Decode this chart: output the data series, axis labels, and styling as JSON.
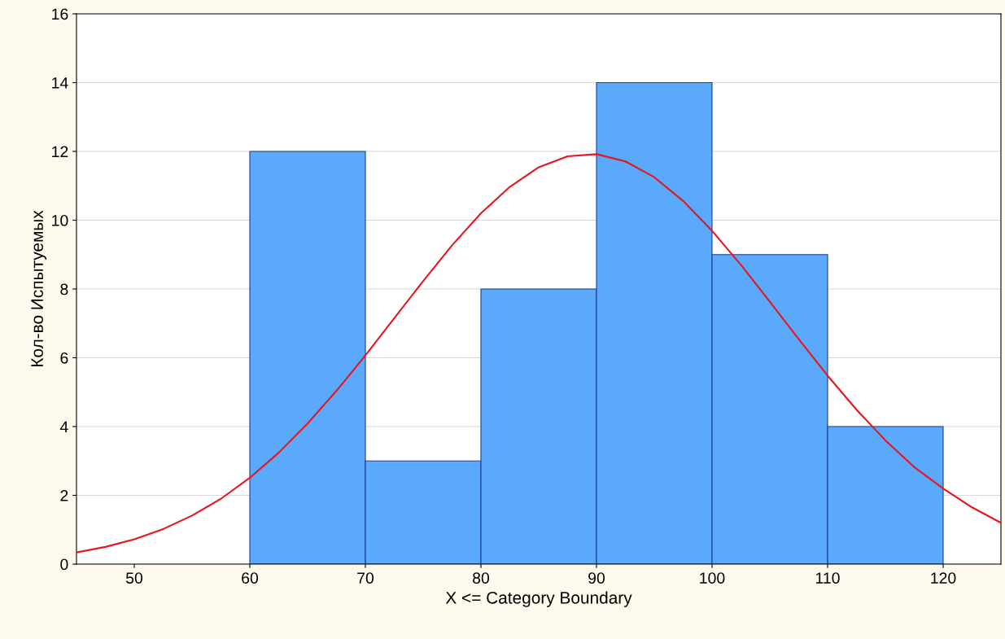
{
  "chart_data": {
    "type": "histogram",
    "xlabel": "X <= Category Boundary",
    "ylabel": "Кол-во Испытуемых",
    "series": [
      {
        "bins": [
          60,
          70,
          80,
          90,
          100,
          110,
          120
        ],
        "values": [
          12,
          3,
          8,
          14,
          9,
          4
        ],
        "color": "#5aa9fa"
      },
      {
        "type": "line",
        "color": "#e8141e",
        "x": [
          45,
          47.5,
          50,
          52.5,
          55,
          57.5,
          60,
          62.5,
          65,
          67.5,
          70,
          72.5,
          75,
          77.5,
          80,
          82.5,
          85,
          87.5,
          90,
          92.5,
          95,
          97.5,
          100,
          102.5,
          105,
          107.5,
          110,
          112.5,
          115,
          117.5,
          120,
          122.5,
          125
        ],
        "values": [
          0.34,
          0.5,
          0.72,
          1.02,
          1.41,
          1.9,
          2.51,
          3.24,
          4.09,
          5.04,
          6.07,
          7.15,
          8.23,
          9.27,
          10.2,
          10.97,
          11.54,
          11.86,
          11.92,
          11.71,
          11.25,
          10.56,
          9.69,
          8.7,
          7.63,
          6.54,
          5.48,
          4.49,
          3.6,
          2.82,
          2.2,
          1.65,
          1.2
        ]
      }
    ],
    "xlim": [
      45,
      125
    ],
    "xticks": [
      50,
      60,
      70,
      80,
      90,
      100,
      110,
      120
    ],
    "ylim": [
      0,
      16
    ],
    "yticks": [
      0,
      2,
      4,
      6,
      8,
      10,
      12,
      14,
      16
    ],
    "grid": "y",
    "legend": false,
    "marker": "none",
    "line_style": "solid"
  }
}
